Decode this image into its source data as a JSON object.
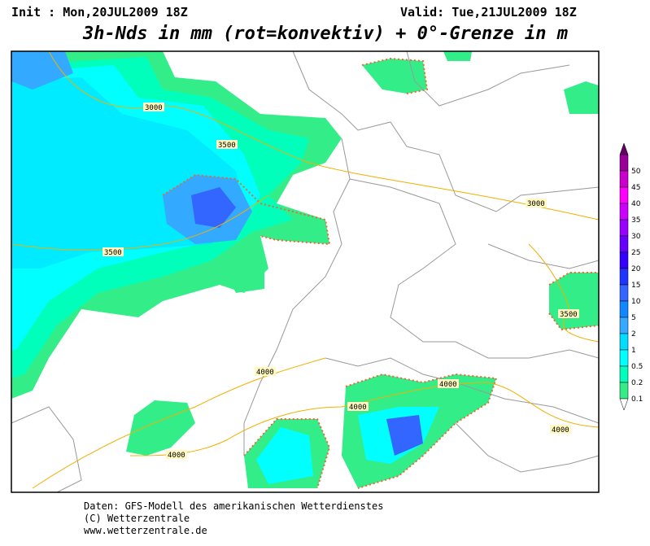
{
  "header": {
    "init": "Init : Mon,20JUL2009 18Z",
    "valid": "Valid: Tue,21JUL2009 18Z",
    "title": "3h-Nds in mm (rot=konvektiv) + 0°-Grenze in m"
  },
  "contour_labels": [
    "3000",
    "3500",
    "3500",
    "3000",
    "3500",
    "4000",
    "4000",
    "4000",
    "4000",
    "4000"
  ],
  "legend": [
    {
      "label": "50",
      "color": "#990099"
    },
    {
      "label": "45",
      "color": "#cc00cc"
    },
    {
      "label": "40",
      "color": "#ff00ff"
    },
    {
      "label": "35",
      "color": "#cc00ff"
    },
    {
      "label": "30",
      "color": "#9900ff"
    },
    {
      "label": "25",
      "color": "#6600ff"
    },
    {
      "label": "20",
      "color": "#3300ff"
    },
    {
      "label": "15",
      "color": "#2233ff"
    },
    {
      "label": "10",
      "color": "#3366ff"
    },
    {
      "label": "5",
      "color": "#1188ff"
    },
    {
      "label": "2",
      "color": "#33aaff"
    },
    {
      "label": "1",
      "color": "#00ddff"
    },
    {
      "label": "0.5",
      "color": "#00ffff"
    },
    {
      "label": "0.2",
      "color": "#00ffbb"
    },
    {
      "label": "0.1",
      "color": "#33ee88"
    }
  ],
  "footer": {
    "line1": "Daten: GFS-Modell des amerikanischen Wetterdienstes",
    "line2": "(C) Wetterzentrale",
    "line3": "www.wetterzentrale.de"
  }
}
